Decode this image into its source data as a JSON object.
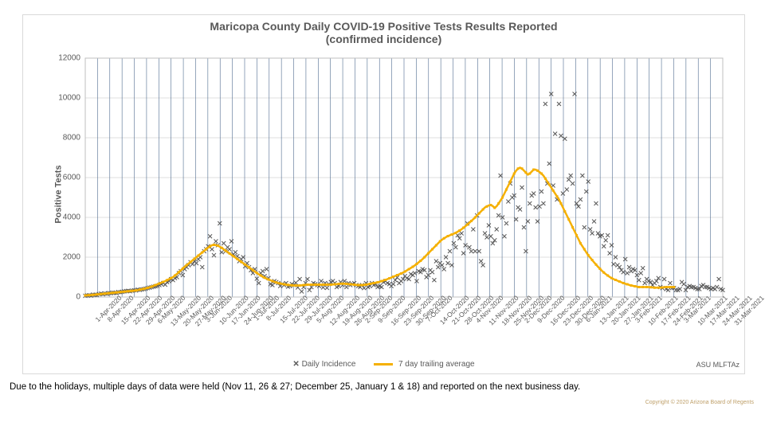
{
  "chart": {
    "title_line1": "Maricopa County  Daily COVID-19 Positive Tests Results Reported",
    "title_line2": "(confirmed incidence)",
    "title_fontsize": 14,
    "ylabel": "Positive Tests",
    "ylabel_fontsize": 11,
    "background_color": "#ffffff",
    "plot_border_color": "#bfbfbf",
    "grid_color": "#bfbfbf",
    "xgrid_color": "#4f6b8f",
    "axis_text_color": "#595959",
    "ylim": [
      0,
      12000
    ],
    "ytick_step": 2000,
    "xtick_labels": [
      "1-Apr-2020",
      "8-Apr-2020",
      "15-Apr-2020",
      "22-Apr-2020",
      "29-Apr-2020",
      "6-May-2020",
      "13-May-2020",
      "20-May-2020",
      "27-May-2020",
      "3-Jun-2020",
      "10-Jun-2020",
      "17-Jun-2020",
      "24-Jun-2020",
      "1-Jul-2020",
      "8-Jul-2020",
      "15-Jul-2020",
      "22-Jul-2020",
      "29-Jul-2020",
      "5-Aug-2020",
      "12-Aug-2020",
      "19-Aug-2020",
      "26-Aug-2020",
      "2-Sep-2020",
      "9-Sep-2020",
      "16-Sep-2020",
      "23-Sep-2020",
      "30-Sep-2020",
      "7-Oct-2020",
      "14-Oct-2020",
      "21-Oct-2020",
      "28-Oct-2020",
      "4-Nov-2020",
      "11-Nov-2020",
      "18-Nov-2020",
      "25-Nov-2020",
      "2-Dec-2020",
      "9-Dec-2020",
      "16-Dec-2020",
      "23-Dec-2020",
      "30-Dec-2020",
      "6-Jan-2021",
      "13-Jan-2021",
      "20-Jan-2021",
      "27-Jan-2021",
      "3-Feb-2021",
      "10-Feb-2021",
      "17-Feb-2021",
      "24-Feb-2021",
      "3-Mar-2021",
      "10-Mar-2021",
      "17-Mar-2021",
      "24-Mar-2021",
      "31-Mar-2021"
    ],
    "xtick_fontsize": 8.5,
    "ytick_fontsize": 10,
    "daily": {
      "marker": "x",
      "marker_size": 5,
      "color": "#595959",
      "values": [
        60,
        80,
        90,
        70,
        120,
        110,
        100,
        150,
        170,
        140,
        180,
        160,
        200,
        190,
        220,
        210,
        200,
        250,
        240,
        260,
        280,
        300,
        310,
        290,
        320,
        340,
        330,
        370,
        360,
        380,
        400,
        420,
        450,
        470,
        500,
        520,
        540,
        560,
        600,
        650,
        700,
        620,
        750,
        800,
        900,
        850,
        950,
        1000,
        1200,
        1300,
        1100,
        1400,
        1500,
        1600,
        1750,
        1650,
        1800,
        1700,
        1900,
        2000,
        1500,
        2300,
        2400,
        2550,
        3050,
        2400,
        2100,
        2800,
        2600,
        3700,
        2250,
        2700,
        2300,
        2500,
        2400,
        2800,
        2150,
        2250,
        2050,
        1800,
        1900,
        2000,
        1550,
        1700,
        1500,
        1350,
        1200,
        1400,
        920,
        700,
        1200,
        1300,
        1050,
        1400,
        950,
        650,
        600,
        800,
        750,
        700,
        550,
        650,
        600,
        700,
        520,
        550,
        650,
        600,
        720,
        480,
        900,
        280,
        500,
        700,
        900,
        350,
        500,
        700,
        650,
        600,
        550,
        800,
        480,
        700,
        460,
        650,
        750,
        800,
        700,
        500,
        550,
        750,
        600,
        800,
        500,
        700,
        600,
        650,
        700,
        600,
        550,
        500,
        600,
        450,
        700,
        500,
        550,
        700,
        600,
        650,
        500,
        550,
        500,
        750,
        800,
        700,
        650,
        550,
        650,
        850,
        980,
        700,
        800,
        900,
        1050,
        950,
        900,
        1150,
        1100,
        1200,
        800,
        1300,
        1250,
        1400,
        1350,
        1000,
        1100,
        1350,
        1250,
        850,
        1800,
        1500,
        1700,
        1600,
        1400,
        2000,
        1700,
        2300,
        1600,
        2700,
        2500,
        3100,
        2950,
        3200,
        2200,
        2600,
        3700,
        2500,
        2300,
        3400,
        2300,
        4100,
        2300,
        1800,
        1600,
        3200,
        3000,
        3600,
        3050,
        2700,
        2850,
        3400,
        4100,
        6100,
        4000,
        3050,
        3700,
        4800,
        5700,
        5000,
        5100,
        3900,
        4500,
        4400,
        5500,
        3500,
        2300,
        3800,
        4700,
        5100,
        5200,
        4500,
        3800,
        4550,
        5300,
        4700,
        9700,
        5700,
        6700,
        10200,
        5600,
        8200,
        4900,
        9700,
        8100,
        5200,
        7950,
        5400,
        5900,
        6100,
        5700,
        10200,
        4700,
        4550,
        4900,
        6100,
        3500,
        5300,
        5800,
        3400,
        3200,
        3800,
        4700,
        3200,
        3050,
        3100,
        2550,
        2850,
        3100,
        2200,
        2600,
        1650,
        2000,
        1600,
        1500,
        1350,
        1250,
        1900,
        1200,
        1500,
        1300,
        1400,
        1350,
        1100,
        850,
        1200,
        1450,
        700,
        900,
        800,
        750,
        600,
        700,
        800,
        950,
        500,
        450,
        900,
        400,
        350,
        700,
        450,
        450,
        350,
        350,
        400,
        750,
        650,
        350,
        500,
        550,
        500,
        500,
        450,
        400,
        400,
        550,
        600,
        500,
        500,
        450,
        400,
        450,
        400,
        500,
        900,
        400,
        350
      ]
    },
    "trailing": {
      "color": "#f5b000",
      "line_width": 2.5,
      "marker": "square",
      "marker_size": 3,
      "values": [
        80,
        90,
        95,
        100,
        110,
        120,
        130,
        140,
        150,
        160,
        170,
        180,
        190,
        200,
        210,
        220,
        230,
        240,
        250,
        260,
        270,
        280,
        290,
        300,
        310,
        320,
        330,
        350,
        370,
        390,
        410,
        430,
        460,
        490,
        520,
        560,
        600,
        640,
        680,
        720,
        760,
        800,
        850,
        900,
        950,
        1000,
        1080,
        1160,
        1250,
        1340,
        1430,
        1520,
        1600,
        1680,
        1760,
        1840,
        1920,
        2000,
        2080,
        2160,
        2240,
        2320,
        2400,
        2480,
        2550,
        2600,
        2620,
        2610,
        2580,
        2530,
        2470,
        2400,
        2330,
        2260,
        2190,
        2120,
        2050,
        1980,
        1910,
        1840,
        1770,
        1700,
        1630,
        1560,
        1490,
        1420,
        1350,
        1280,
        1210,
        1140,
        1080,
        1020,
        970,
        920,
        880,
        840,
        800,
        760,
        730,
        700,
        680,
        660,
        640,
        620,
        610,
        600,
        590,
        580,
        580,
        580,
        580,
        590,
        600,
        610,
        620,
        620,
        620,
        620,
        620,
        620,
        620,
        620,
        620,
        620,
        620,
        620,
        620,
        630,
        640,
        650,
        660,
        670,
        670,
        670,
        660,
        650,
        640,
        630,
        620,
        610,
        600,
        600,
        600,
        610,
        620,
        640,
        660,
        680,
        700,
        720,
        740,
        770,
        800,
        830,
        860,
        900,
        940,
        980,
        1020,
        1060,
        1100,
        1140,
        1180,
        1230,
        1280,
        1340,
        1400,
        1460,
        1520,
        1590,
        1660,
        1740,
        1820,
        1900,
        2000,
        2100,
        2200,
        2300,
        2400,
        2500,
        2600,
        2700,
        2800,
        2880,
        2950,
        3010,
        3060,
        3100,
        3140,
        3180,
        3220,
        3280,
        3340,
        3400,
        3480,
        3560,
        3640,
        3730,
        3820,
        3910,
        4000,
        4100,
        4200,
        4300,
        4400,
        4500,
        4550,
        4600,
        4620,
        4570,
        4480,
        4560,
        4700,
        4850,
        5000,
        5200,
        5400,
        5600,
        5800,
        6000,
        6200,
        6350,
        6450,
        6500,
        6450,
        6350,
        6250,
        6150,
        6200,
        6300,
        6400,
        6400,
        6350,
        6280,
        6200,
        6100,
        5950,
        5800,
        5650,
        5500,
        5350,
        5200,
        5050,
        4900,
        4700,
        4500,
        4300,
        4100,
        3900,
        3700,
        3500,
        3300,
        3100,
        2900,
        2700,
        2550,
        2400,
        2250,
        2100,
        1980,
        1860,
        1740,
        1630,
        1520,
        1420,
        1320,
        1230,
        1150,
        1080,
        1010,
        950,
        900,
        860,
        820,
        780,
        740,
        700,
        670,
        640,
        610,
        580,
        560,
        540,
        520,
        500,
        500,
        500,
        500,
        500,
        500,
        490,
        480,
        470,
        470,
        470,
        470,
        480,
        490,
        500,
        500,
        500,
        500,
        500
      ]
    },
    "legend": {
      "items": [
        {
          "marker": "x",
          "label": "Daily Incidence",
          "color": "#595959"
        },
        {
          "marker": "line",
          "label": "7 day trailing average",
          "color": "#f5b000"
        }
      ]
    },
    "attribution": "ASU MLFTAz"
  },
  "note": "Due to the holidays, multiple days of data were held (Nov 11, 26 & 27; December 25, January 1 & 18) and reported on the next business day.",
  "note_fontsize": 11.5,
  "copyright": "Copyright © 2020  Arizona Board of Regents",
  "copyright_fontsize": 7
}
